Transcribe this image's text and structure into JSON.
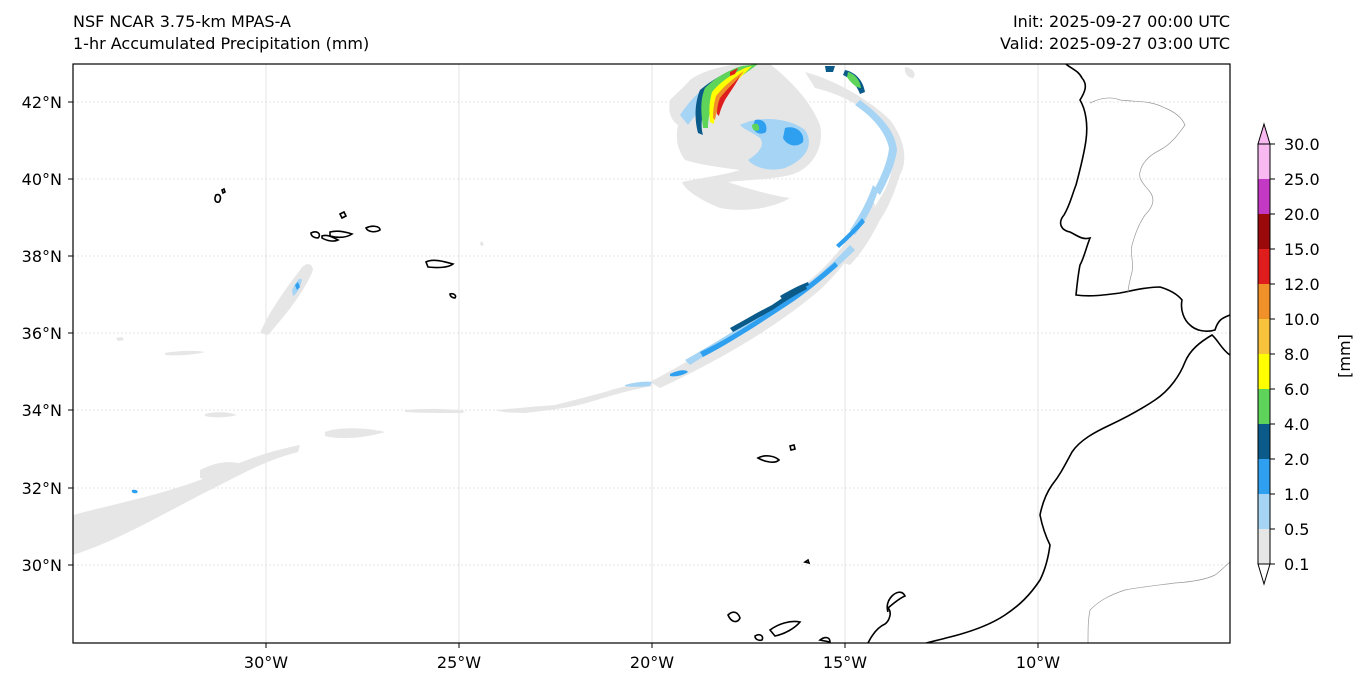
{
  "header": {
    "left_line1": "NSF NCAR 3.75-km MPAS-A",
    "left_line2": "1-hr Accumulated Precipitation (mm)",
    "right_line1": "Init: 2025-09-27 00:00 UTC",
    "right_line2": "Valid: 2025-09-27 03:00 UTC"
  },
  "map": {
    "lon_labels": [
      "30°W",
      "25°W",
      "20°W",
      "15°W",
      "10°W"
    ],
    "lat_labels": [
      "42°N",
      "40°N",
      "38°N",
      "36°N",
      "34°N",
      "32°N",
      "30°N"
    ]
  },
  "colorbar": {
    "unit_label": "[mm]",
    "levels": [
      "0.1",
      "0.5",
      "1.0",
      "2.0",
      "4.0",
      "6.0",
      "8.0",
      "10.0",
      "12.0",
      "15.0",
      "20.0",
      "25.0",
      "30.0"
    ],
    "colors": [
      "#e6e6e6",
      "#a6d4f5",
      "#2fa0f0",
      "#0a5a8a",
      "#5fd45a",
      "#ffff00",
      "#f7c33c",
      "#f09028",
      "#e01d1d",
      "#9a0a0a",
      "#c439c4",
      "#f8b8f0"
    ]
  }
}
